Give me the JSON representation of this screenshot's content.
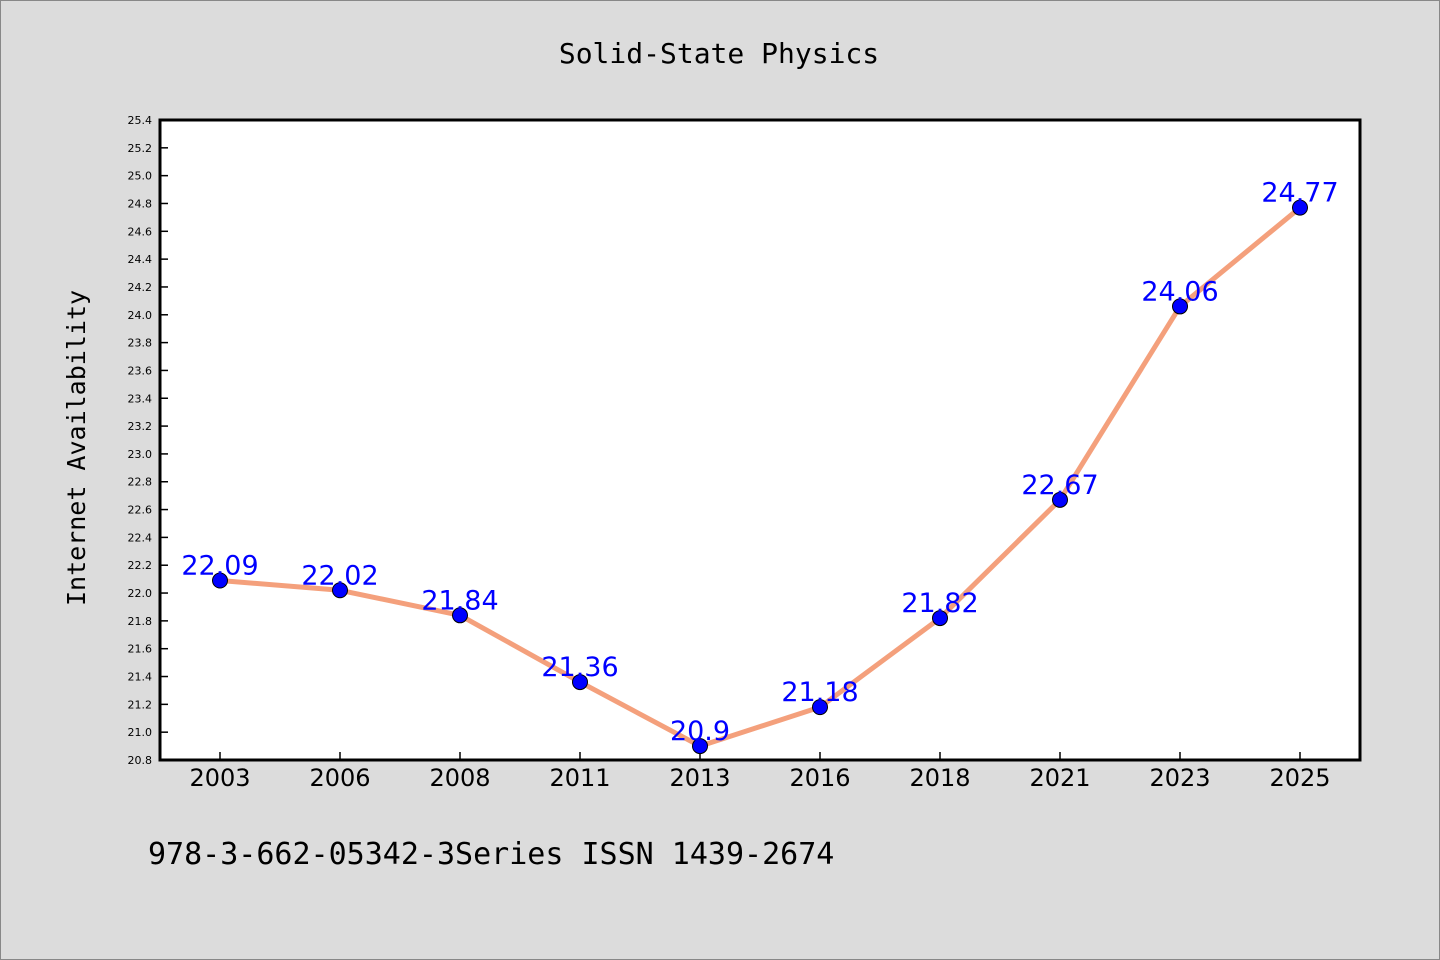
{
  "chart_data": {
    "type": "line",
    "title": "Solid-State Physics",
    "xlabel": "",
    "ylabel": "Internet Availability",
    "categories": [
      "2003",
      "2006",
      "2008",
      "2011",
      "2013",
      "2016",
      "2018",
      "2021",
      "2023",
      "2025"
    ],
    "series": [
      {
        "values": [
          22.09,
          22.02,
          21.84,
          21.36,
          20.9,
          21.18,
          21.82,
          22.67,
          24.06,
          24.77
        ],
        "data_labels": [
          "22.09",
          "22.02",
          "21.84",
          "21.36",
          "20.9",
          "21.18",
          "21.82",
          "22.67",
          "24.06",
          "24.77"
        ]
      }
    ],
    "ylim": [
      20.8,
      25.4
    ],
    "y_ticks": [
      "20.8",
      "21.0",
      "21.2",
      "21.4",
      "21.6",
      "21.8",
      "22.0",
      "22.2",
      "22.4",
      "22.6",
      "22.8",
      "23.0",
      "23.2",
      "23.4",
      "23.6",
      "23.8",
      "24.0",
      "24.2",
      "24.4",
      "24.6",
      "24.8",
      "25.0",
      "25.2",
      "25.4"
    ],
    "grid": false,
    "legend": "none",
    "colors": {
      "line": "#f4a07c",
      "marker": "#0000ff",
      "data_label": "#0000ff",
      "background": "#dcdcdc",
      "plot_background": "#ffffff"
    }
  },
  "footer": {
    "text": "978-3-662-05342-3Series ISSN 1439-2674"
  }
}
